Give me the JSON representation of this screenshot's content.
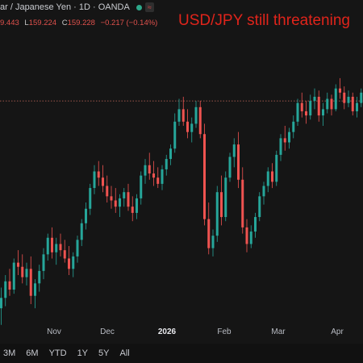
{
  "header": {
    "symbol_name": "ar / Japanese Yen · 1D · OANDA",
    "tag": "≈",
    "ohlc": [
      {
        "label": "",
        "value": "9.443"
      },
      {
        "label": "L",
        "value": "159.224"
      },
      {
        "label": "C",
        "value": "159.228"
      },
      {
        "label": "",
        "value": "−0.217 (−0.14%)"
      }
    ]
  },
  "headline": "USD/JPY still threatening",
  "time_axis": [
    "Nov",
    "Dec",
    "2026",
    "Feb",
    "Mar",
    "Apr"
  ],
  "ranges": [
    "3M",
    "6M",
    "YTD",
    "1Y",
    "5Y",
    "All"
  ],
  "colors": {
    "up": "#26a69a",
    "down": "#ef5350",
    "background": "#151515",
    "headline": "#e0241b"
  },
  "chart_data": {
    "type": "candlestick",
    "reference_line": 155.0,
    "ylim": [
      144.5,
      158.7
    ],
    "candles": [
      [
        145.0,
        146.0,
        144.2,
        145.5
      ],
      [
        145.5,
        146.6,
        145.1,
        146.3
      ],
      [
        146.3,
        146.9,
        145.6,
        145.9
      ],
      [
        145.9,
        147.4,
        145.7,
        147.2
      ],
      [
        147.2,
        147.8,
        146.6,
        147.0
      ],
      [
        147.0,
        147.6,
        146.2,
        146.5
      ],
      [
        146.5,
        147.2,
        146.1,
        146.9
      ],
      [
        146.9,
        147.5,
        145.2,
        145.6
      ],
      [
        145.6,
        146.4,
        145.0,
        146.2
      ],
      [
        146.2,
        147.1,
        145.8,
        146.8
      ],
      [
        146.8,
        147.9,
        146.4,
        147.6
      ],
      [
        147.6,
        148.6,
        147.3,
        148.4
      ],
      [
        148.4,
        148.9,
        147.4,
        147.7
      ],
      [
        147.7,
        148.4,
        147.1,
        148.1
      ],
      [
        148.1,
        148.6,
        147.5,
        147.8
      ],
      [
        147.8,
        148.3,
        147.2,
        147.4
      ],
      [
        147.4,
        148.0,
        146.6,
        146.9
      ],
      [
        146.9,
        147.7,
        146.5,
        147.5
      ],
      [
        147.5,
        148.5,
        147.2,
        148.3
      ],
      [
        148.3,
        149.3,
        148.0,
        149.1
      ],
      [
        149.1,
        150.1,
        148.8,
        149.8
      ],
      [
        149.8,
        151.0,
        149.5,
        150.8
      ],
      [
        150.8,
        151.9,
        150.5,
        151.6
      ],
      [
        151.6,
        152.1,
        150.9,
        151.3
      ],
      [
        151.3,
        151.9,
        150.6,
        150.9
      ],
      [
        150.9,
        151.4,
        150.1,
        150.4
      ],
      [
        150.4,
        150.9,
        149.8,
        150.2
      ],
      [
        150.2,
        150.8,
        149.6,
        149.9
      ],
      [
        149.9,
        150.5,
        149.4,
        150.3
      ],
      [
        150.3,
        150.8,
        149.9,
        150.6
      ],
      [
        150.6,
        151.0,
        149.7,
        149.9
      ],
      [
        149.9,
        150.4,
        149.2,
        149.6
      ],
      [
        149.6,
        150.5,
        149.3,
        150.3
      ],
      [
        150.3,
        151.6,
        150.0,
        151.4
      ],
      [
        151.4,
        152.2,
        151.0,
        151.9
      ],
      [
        151.9,
        152.5,
        151.2,
        151.5
      ],
      [
        151.5,
        152.1,
        150.9,
        151.3
      ],
      [
        151.3,
        151.8,
        150.8,
        151.0
      ],
      [
        151.0,
        151.9,
        150.7,
        151.7
      ],
      [
        151.7,
        152.4,
        151.4,
        152.2
      ],
      [
        152.2,
        152.9,
        151.9,
        152.7
      ],
      [
        152.7,
        154.4,
        152.5,
        154.0
      ],
      [
        154.0,
        155.1,
        153.8,
        154.6
      ],
      [
        154.6,
        155.2,
        153.8,
        154.0
      ],
      [
        154.0,
        154.6,
        153.2,
        153.5
      ],
      [
        153.5,
        154.2,
        153.0,
        153.9
      ],
      [
        153.9,
        155.0,
        153.7,
        154.7
      ],
      [
        154.7,
        155.0,
        153.2,
        153.4
      ],
      [
        153.4,
        153.9,
        149.0,
        149.3
      ],
      [
        149.3,
        150.1,
        147.6,
        147.9
      ],
      [
        147.9,
        148.8,
        147.5,
        148.5
      ],
      [
        148.5,
        150.9,
        148.2,
        150.6
      ],
      [
        150.6,
        151.4,
        149.0,
        149.4
      ],
      [
        149.4,
        151.6,
        149.2,
        151.3
      ],
      [
        151.3,
        152.5,
        151.1,
        152.3
      ],
      [
        152.3,
        153.2,
        151.8,
        152.9
      ],
      [
        152.9,
        153.5,
        150.8,
        151.2
      ],
      [
        151.2,
        151.8,
        148.6,
        148.9
      ],
      [
        148.9,
        149.3,
        147.7,
        148.1
      ],
      [
        148.1,
        149.0,
        147.9,
        148.7
      ],
      [
        148.7,
        149.6,
        148.4,
        149.4
      ],
      [
        149.4,
        150.6,
        149.2,
        150.4
      ],
      [
        150.4,
        151.1,
        150.0,
        150.9
      ],
      [
        150.9,
        151.8,
        150.6,
        151.6
      ],
      [
        151.6,
        152.0,
        150.8,
        151.1
      ],
      [
        151.1,
        152.6,
        150.9,
        152.4
      ],
      [
        152.4,
        153.4,
        152.1,
        153.2
      ],
      [
        153.2,
        153.8,
        152.6,
        153.0
      ],
      [
        153.0,
        153.7,
        152.7,
        153.5
      ],
      [
        153.5,
        154.3,
        153.2,
        154.0
      ],
      [
        154.0,
        155.1,
        153.8,
        154.9
      ],
      [
        154.9,
        155.4,
        154.2,
        154.5
      ],
      [
        154.5,
        155.0,
        153.9,
        154.3
      ],
      [
        154.3,
        155.3,
        154.1,
        155.0
      ],
      [
        155.0,
        155.6,
        154.6,
        155.2
      ],
      [
        155.2,
        155.5,
        154.0,
        154.3
      ],
      [
        154.3,
        154.9,
        153.8,
        154.6
      ],
      [
        154.6,
        155.4,
        154.4,
        155.1
      ],
      [
        155.1,
        155.3,
        154.3,
        154.6
      ],
      [
        154.6,
        155.8,
        154.5,
        155.6
      ],
      [
        155.6,
        156.1,
        155.1,
        155.4
      ],
      [
        155.4,
        155.7,
        154.6,
        154.9
      ],
      [
        154.9,
        155.5,
        154.7,
        155.2
      ],
      [
        155.2,
        155.4,
        154.3,
        154.5
      ],
      [
        154.5,
        155.2,
        154.2,
        154.9
      ],
      [
        154.9,
        155.6,
        154.7,
        155.4
      ]
    ]
  }
}
